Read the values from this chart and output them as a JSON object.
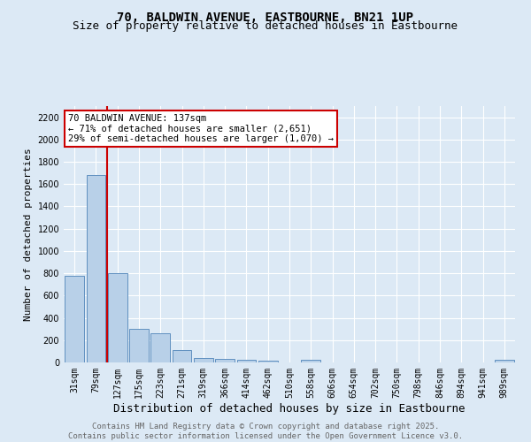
{
  "title": "70, BALDWIN AVENUE, EASTBOURNE, BN21 1UP",
  "subtitle": "Size of property relative to detached houses in Eastbourne",
  "xlabel": "Distribution of detached houses by size in Eastbourne",
  "ylabel": "Number of detached properties",
  "categories": [
    "31sqm",
    "79sqm",
    "127sqm",
    "175sqm",
    "223sqm",
    "271sqm",
    "319sqm",
    "366sqm",
    "414sqm",
    "462sqm",
    "510sqm",
    "558sqm",
    "606sqm",
    "654sqm",
    "702sqm",
    "750sqm",
    "798sqm",
    "846sqm",
    "894sqm",
    "941sqm",
    "989sqm"
  ],
  "values": [
    775,
    1680,
    800,
    300,
    260,
    115,
    42,
    35,
    22,
    18,
    0,
    20,
    0,
    0,
    0,
    0,
    0,
    0,
    0,
    0,
    20
  ],
  "bar_color": "#b8d0e8",
  "bar_edge_color": "#6090c0",
  "red_line_x": 1.5,
  "annotation_title": "70 BALDWIN AVENUE: 137sqm",
  "annotation_line1": "← 71% of detached houses are smaller (2,651)",
  "annotation_line2": "29% of semi-detached houses are larger (1,070) →",
  "annotation_box_color": "#ffffff",
  "annotation_border_color": "#cc0000",
  "red_line_color": "#cc0000",
  "ylim": [
    0,
    2300
  ],
  "yticks": [
    0,
    200,
    400,
    600,
    800,
    1000,
    1200,
    1400,
    1600,
    1800,
    2000,
    2200
  ],
  "background_color": "#dce9f5",
  "plot_bg_color": "#dce9f5",
  "footer_line1": "Contains HM Land Registry data © Crown copyright and database right 2025.",
  "footer_line2": "Contains public sector information licensed under the Open Government Licence v3.0.",
  "title_fontsize": 10,
  "subtitle_fontsize": 9,
  "xlabel_fontsize": 9,
  "ylabel_fontsize": 8,
  "tick_fontsize": 7,
  "footer_fontsize": 6.5
}
